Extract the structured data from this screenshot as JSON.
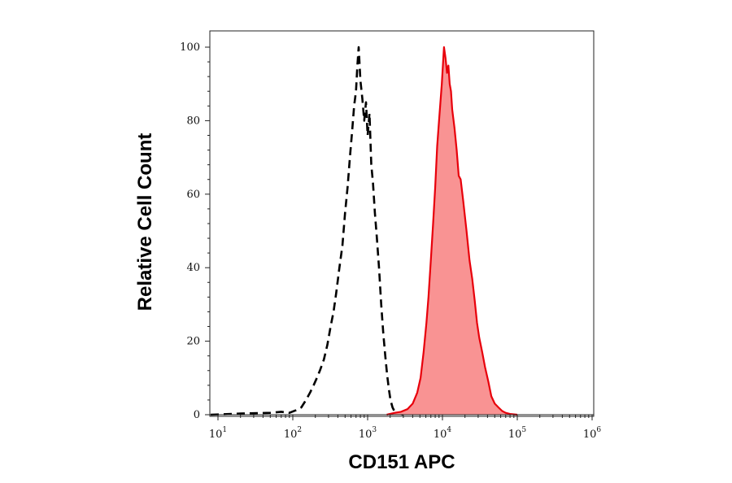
{
  "chart_data": {
    "type": "area",
    "title": "",
    "xlabel": "CD151 APC",
    "ylabel": "Relative Cell Count",
    "x_scale": "log",
    "xlim": [
      10,
      1000000
    ],
    "ylim": [
      0,
      100
    ],
    "x_ticks": [
      {
        "value": 10,
        "base": "10",
        "exp": "1"
      },
      {
        "value": 100,
        "base": "10",
        "exp": "2"
      },
      {
        "value": 1000,
        "base": "10",
        "exp": "3"
      },
      {
        "value": 10000,
        "base": "10",
        "exp": "4"
      },
      {
        "value": 100000,
        "base": "10",
        "exp": "5"
      },
      {
        "value": 1000000,
        "base": "10",
        "exp": "6"
      }
    ],
    "y_ticks": [
      "0",
      "20",
      "40",
      "60",
      "80",
      "100"
    ],
    "grid": false,
    "legend": "none",
    "series": [
      {
        "style": "dashed-line",
        "color": "#000000",
        "points": [
          [
            7,
            0
          ],
          [
            20,
            0.3
          ],
          [
            50,
            0.5
          ],
          [
            70,
            0.8
          ],
          [
            90,
            0.5
          ],
          [
            110,
            1.2
          ],
          [
            130,
            2
          ],
          [
            150,
            4
          ],
          [
            170,
            6
          ],
          [
            190,
            8
          ],
          [
            210,
            10
          ],
          [
            230,
            12
          ],
          [
            260,
            15
          ],
          [
            290,
            19
          ],
          [
            320,
            24
          ],
          [
            350,
            28
          ],
          [
            380,
            33
          ],
          [
            420,
            40
          ],
          [
            460,
            46
          ],
          [
            500,
            55
          ],
          [
            540,
            62
          ],
          [
            580,
            70
          ],
          [
            620,
            77
          ],
          [
            660,
            84
          ],
          [
            700,
            88
          ],
          [
            730,
            95
          ],
          [
            760,
            100
          ],
          [
            800,
            91
          ],
          [
            850,
            86
          ],
          [
            900,
            80
          ],
          [
            950,
            85
          ],
          [
            1000,
            76
          ],
          [
            1060,
            82
          ],
          [
            1120,
            68
          ],
          [
            1180,
            63
          ],
          [
            1250,
            55
          ],
          [
            1330,
            48
          ],
          [
            1420,
            40
          ],
          [
            1520,
            30
          ],
          [
            1620,
            22
          ],
          [
            1720,
            16
          ],
          [
            1820,
            11
          ],
          [
            1920,
            7
          ],
          [
            2020,
            4
          ],
          [
            2150,
            2
          ],
          [
            2300,
            0.8
          ],
          [
            2600,
            0.3
          ],
          [
            3000,
            0
          ]
        ]
      },
      {
        "style": "filled",
        "color": "#e8000b",
        "fill": "#f99393",
        "points": [
          [
            1800,
            0
          ],
          [
            2300,
            0.5
          ],
          [
            2800,
            0.8
          ],
          [
            3400,
            1.5
          ],
          [
            4000,
            3
          ],
          [
            4600,
            6
          ],
          [
            5100,
            10
          ],
          [
            5600,
            17
          ],
          [
            6100,
            25
          ],
          [
            6500,
            32
          ],
          [
            7000,
            42
          ],
          [
            7500,
            52
          ],
          [
            8000,
            62
          ],
          [
            8500,
            73
          ],
          [
            9000,
            80
          ],
          [
            9400,
            85
          ],
          [
            9800,
            90
          ],
          [
            10200,
            96
          ],
          [
            10500,
            100
          ],
          [
            11000,
            97
          ],
          [
            11500,
            93
          ],
          [
            12000,
            95
          ],
          [
            12500,
            90
          ],
          [
            13000,
            88
          ],
          [
            13500,
            83
          ],
          [
            14500,
            78
          ],
          [
            15500,
            72
          ],
          [
            16500,
            65
          ],
          [
            17500,
            64
          ],
          [
            19000,
            58
          ],
          [
            21000,
            50
          ],
          [
            23000,
            42
          ],
          [
            25000,
            37
          ],
          [
            27000,
            31
          ],
          [
            29000,
            25
          ],
          [
            31000,
            21
          ],
          [
            34000,
            17
          ],
          [
            37000,
            13
          ],
          [
            41000,
            9
          ],
          [
            45000,
            5
          ],
          [
            50000,
            3
          ],
          [
            56000,
            2
          ],
          [
            63000,
            1
          ],
          [
            70000,
            0.5
          ],
          [
            80000,
            0.2
          ],
          [
            100000,
            0
          ]
        ]
      }
    ]
  }
}
